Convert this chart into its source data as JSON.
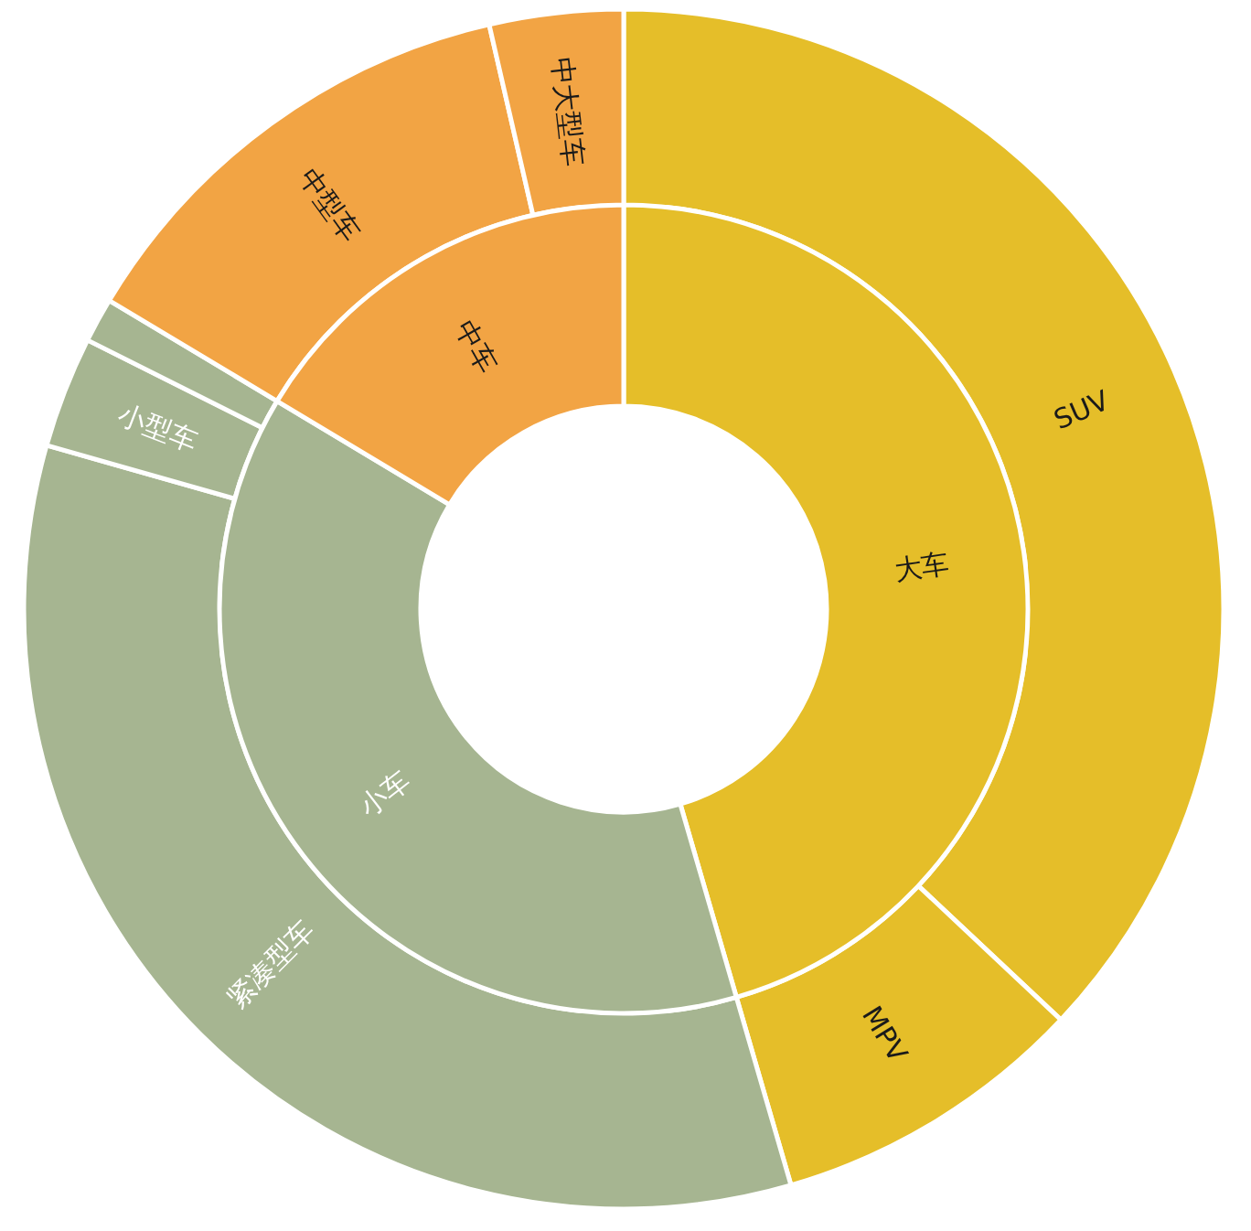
{
  "chart_data": [
    {
      "type": "donut",
      "categories": [
        "大车",
        "小车",
        "中车"
      ],
      "values": [
        45.5,
        38.1,
        16.4
      ],
      "colors": [
        "#e5be29",
        "#a6b591",
        "#f2a444"
      ]
    },
    {
      "type": "donut",
      "categories": [
        "SUV",
        "MPV",
        "紧凑型车",
        "小型车",
        null,
        "中型车",
        "中大型车"
      ],
      "values": [
        37.0,
        8.5,
        33.9,
        3.0,
        1.2,
        12.8,
        3.6
      ],
      "colors": [
        "#e5be29",
        "#e5be29",
        "#a6b591",
        "#a6b591",
        "#a6b591",
        "#f2a444",
        "#f2a444"
      ]
    }
  ]
}
